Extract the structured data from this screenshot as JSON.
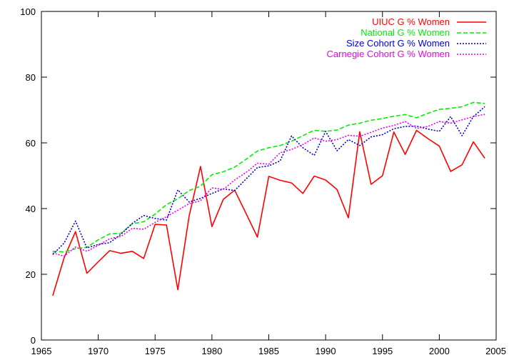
{
  "chart_data": {
    "type": "line",
    "title": "",
    "xlabel": "",
    "ylabel": "",
    "xlim": [
      1965,
      2005
    ],
    "ylim": [
      0,
      100
    ],
    "xticks": [
      1965,
      1970,
      1975,
      1980,
      1985,
      1990,
      1995,
      2000,
      2005
    ],
    "yticks": [
      0,
      20,
      40,
      60,
      80,
      100
    ],
    "grid": false,
    "legend_position": "top-right",
    "x": [
      1966,
      1967,
      1968,
      1969,
      1970,
      1971,
      1972,
      1973,
      1974,
      1975,
      1976,
      1977,
      1978,
      1979,
      1980,
      1981,
      1982,
      1983,
      1984,
      1985,
      1986,
      1987,
      1988,
      1989,
      1990,
      1991,
      1992,
      1993,
      1994,
      1995,
      1996,
      1997,
      1998,
      1999,
      2000,
      2001,
      2002,
      2003,
      2004
    ],
    "series": [
      {
        "name": "UIUC G % Women",
        "color": "#ff0000",
        "dash": "solid",
        "values": [
          13.5,
          25.0,
          33.0,
          20.3,
          23.8,
          27.2,
          26.4,
          27.0,
          24.8,
          35.2,
          35.0,
          15.3,
          37.8,
          52.8,
          34.5,
          42.8,
          45.6,
          38.5,
          31.3,
          49.8,
          48.6,
          47.8,
          44.6,
          49.9,
          48.7,
          45.8,
          37.2,
          63.4,
          47.4,
          50.0,
          63.3,
          56.5,
          63.8,
          61.3,
          59.0,
          51.3,
          53.3,
          60.3,
          55.3
        ]
      },
      {
        "name": "National G % Women",
        "color": "#00ee00",
        "dash": "dashed",
        "values": [
          27.0,
          26.8,
          27.8,
          28.2,
          30.5,
          32.3,
          32.5,
          35.4,
          36.0,
          38.3,
          41.2,
          43.0,
          45.5,
          46.8,
          50.3,
          51.2,
          52.6,
          55.0,
          57.5,
          58.5,
          59.2,
          60.5,
          62.2,
          63.8,
          63.5,
          63.9,
          65.4,
          66.0,
          66.9,
          67.4,
          68.1,
          68.6,
          67.6,
          69.0,
          70.2,
          70.5,
          71.0,
          72.3,
          72.0
        ]
      },
      {
        "name": "Size Cohort G % Women",
        "color": "#0000cc",
        "dash": "dotted",
        "values": [
          26.0,
          29.5,
          36.2,
          28.0,
          29.1,
          29.6,
          32.2,
          35.5,
          37.9,
          37.0,
          36.5,
          45.7,
          42.0,
          43.1,
          44.6,
          46.0,
          45.5,
          49.0,
          52.5,
          53.0,
          54.5,
          62.1,
          58.5,
          56.2,
          63.5,
          57.6,
          61.0,
          59.2,
          61.8,
          62.5,
          64.3,
          65.0,
          65.1,
          64.2,
          63.5,
          68.0,
          62.2,
          68.0,
          71.0
        ]
      },
      {
        "name": "Carnegie Cohort G % Women",
        "color": "#ee00ee",
        "dash": "dotted",
        "values": [
          26.5,
          25.5,
          28.3,
          27.0,
          28.8,
          30.8,
          31.5,
          34.0,
          33.7,
          35.8,
          37.5,
          39.5,
          41.5,
          42.4,
          46.3,
          45.8,
          48.7,
          51.0,
          53.8,
          53.5,
          57.0,
          58.0,
          59.5,
          61.5,
          60.5,
          61.0,
          62.3,
          62.0,
          63.2,
          64.5,
          65.3,
          66.5,
          64.4,
          65.0,
          66.5,
          66.0,
          67.0,
          68.0,
          68.7
        ]
      }
    ]
  }
}
